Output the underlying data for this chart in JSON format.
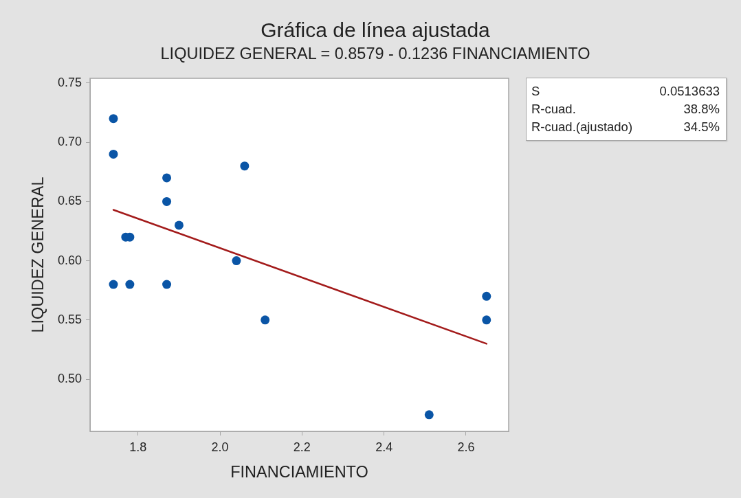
{
  "chart_data": {
    "type": "scatter",
    "title": "Gráfica de línea ajustada",
    "subtitle": "LIQUIDEZ GENERAL = 0.8579 - 0.1236 FINANCIAMIENTO",
    "xlabel": "FINANCIAMIENTO",
    "ylabel": "LIQUIDEZ GENERAL",
    "annotations": [
      "S 0.0513633",
      "R-cuad. 38.8%",
      "R-cuad.(ajustado) 34.5%"
    ],
    "xlim": [
      1.683,
      2.704
    ],
    "ylim": [
      0.456,
      0.754
    ],
    "xticks": [
      1.8,
      {
        "value": 2,
        "label": "2.0"
      },
      2.2,
      2.4,
      2.6
    ],
    "yticks": [
      {
        "value": 0.5,
        "label": "0.50"
      },
      0.55,
      {
        "value": 0.6,
        "label": "0.60"
      },
      0.65,
      {
        "value": 0.7,
        "label": "0.70"
      },
      0.75
    ],
    "marker": "circle",
    "series": [
      {
        "type": "scatter",
        "color": "#0a55a6",
        "x": [
          1.74,
          1.74,
          1.74,
          1.77,
          1.78,
          1.78,
          1.87,
          1.87,
          1.87,
          1.9,
          2.04,
          2.06,
          2.11,
          2.51,
          2.65,
          2.65
        ],
        "values": [
          0.72,
          0.69,
          0.58,
          0.62,
          0.62,
          0.58,
          0.67,
          0.65,
          0.58,
          0.63,
          0.6,
          0.68,
          0.55,
          0.47,
          0.57,
          0.55
        ]
      },
      {
        "type": "line",
        "color": "#a31b1b",
        "marker": "none",
        "x": [
          1.74,
          2.65
        ],
        "values": [
          0.643,
          0.53
        ]
      }
    ]
  }
}
